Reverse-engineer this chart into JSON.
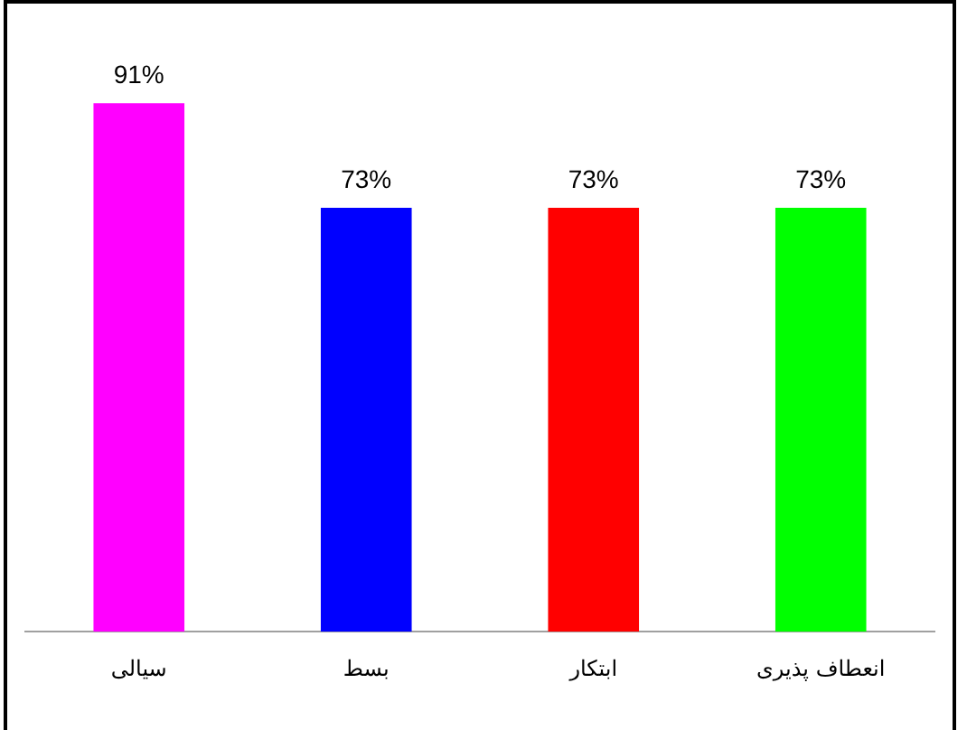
{
  "chart_data": {
    "type": "bar",
    "categories": [
      "سیالی",
      "بسط",
      "ابتکار",
      "انعطاف پذیری"
    ],
    "values": [
      91,
      73,
      73,
      73
    ],
    "colors": [
      "#ff00ff",
      "#0000ff",
      "#ff0000",
      "#00ff00"
    ],
    "value_labels": [
      "91%",
      "73%",
      "73%",
      "73%"
    ],
    "grid": false,
    "legend": false
  }
}
